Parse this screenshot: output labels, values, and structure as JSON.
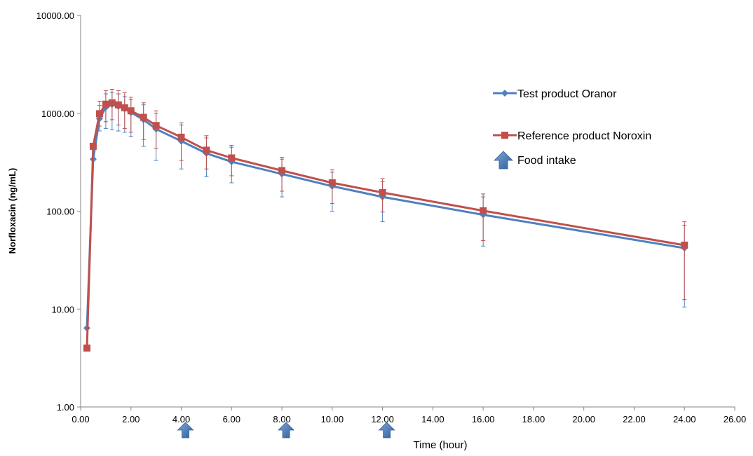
{
  "chart_data": {
    "type": "line",
    "title": "",
    "xlabel": "Time (hour)",
    "ylabel": "Norfloxacin (ng/mL)",
    "xlim": [
      0,
      26
    ],
    "ylim": [
      1,
      10000
    ],
    "yscale": "log",
    "x_ticks": [
      0,
      2,
      4,
      6,
      8,
      10,
      12,
      14,
      16,
      18,
      20,
      22,
      24,
      26
    ],
    "x_tick_labels": [
      "0.00",
      "2.00",
      "4.00",
      "6.00",
      "8.00",
      "10.00",
      "12.00",
      "14.00",
      "16.00",
      "18.00",
      "20.00",
      "22.00",
      "24.00",
      "26.00"
    ],
    "y_ticks": [
      1,
      10,
      100,
      1000,
      10000
    ],
    "y_tick_labels": [
      "1.00",
      "10.00",
      "100.00",
      "1000.00",
      "10000.00"
    ],
    "grid": false,
    "legend_position": "right",
    "series": [
      {
        "name": "Test product Oranor",
        "color": "#4F81BD",
        "marker": "diamond",
        "x": [
          0.25,
          0.5,
          0.75,
          1.0,
          1.25,
          1.5,
          1.75,
          2.0,
          2.5,
          3.0,
          4.0,
          5.0,
          6.0,
          8.0,
          10.0,
          12.0,
          16.0,
          24.0
        ],
        "y": [
          6.4,
          340,
          880,
          1150,
          1230,
          1180,
          1110,
          1020,
          860,
          690,
          520,
          390,
          320,
          240,
          180,
          140,
          92,
          42
        ],
        "err_low": [
          6.4,
          340,
          660,
          700,
          680,
          660,
          640,
          580,
          460,
          330,
          270,
          225,
          195,
          140,
          100,
          78,
          44,
          10.5
        ],
        "err_high": [
          6.4,
          340,
          1200,
          1580,
          1620,
          1580,
          1480,
          1380,
          1220,
          1000,
          760,
          560,
          450,
          340,
          250,
          200,
          140,
          72
        ]
      },
      {
        "name": "Reference product Noroxin",
        "color": "#C0504D",
        "marker": "square",
        "x": [
          0.25,
          0.5,
          0.75,
          1.0,
          1.25,
          1.5,
          1.75,
          2.0,
          2.5,
          3.0,
          4.0,
          5.0,
          6.0,
          8.0,
          10.0,
          12.0,
          16.0,
          24.0
        ],
        "y": [
          4.0,
          460,
          990,
          1240,
          1280,
          1220,
          1140,
          1060,
          910,
          750,
          570,
          420,
          350,
          260,
          195,
          155,
          101,
          45
        ],
        "err_low": [
          4.0,
          460,
          740,
          820,
          860,
          760,
          700,
          640,
          540,
          440,
          330,
          270,
          230,
          160,
          120,
          98,
          50,
          12.5
        ],
        "err_high": [
          4.0,
          460,
          1330,
          1700,
          1760,
          1700,
          1620,
          1460,
          1280,
          1060,
          800,
          590,
          470,
          355,
          265,
          215,
          150,
          78
        ]
      }
    ],
    "food_intake": {
      "label": "Food intake",
      "color": "#4F81BD",
      "x": [
        4,
        8,
        12
      ]
    }
  }
}
